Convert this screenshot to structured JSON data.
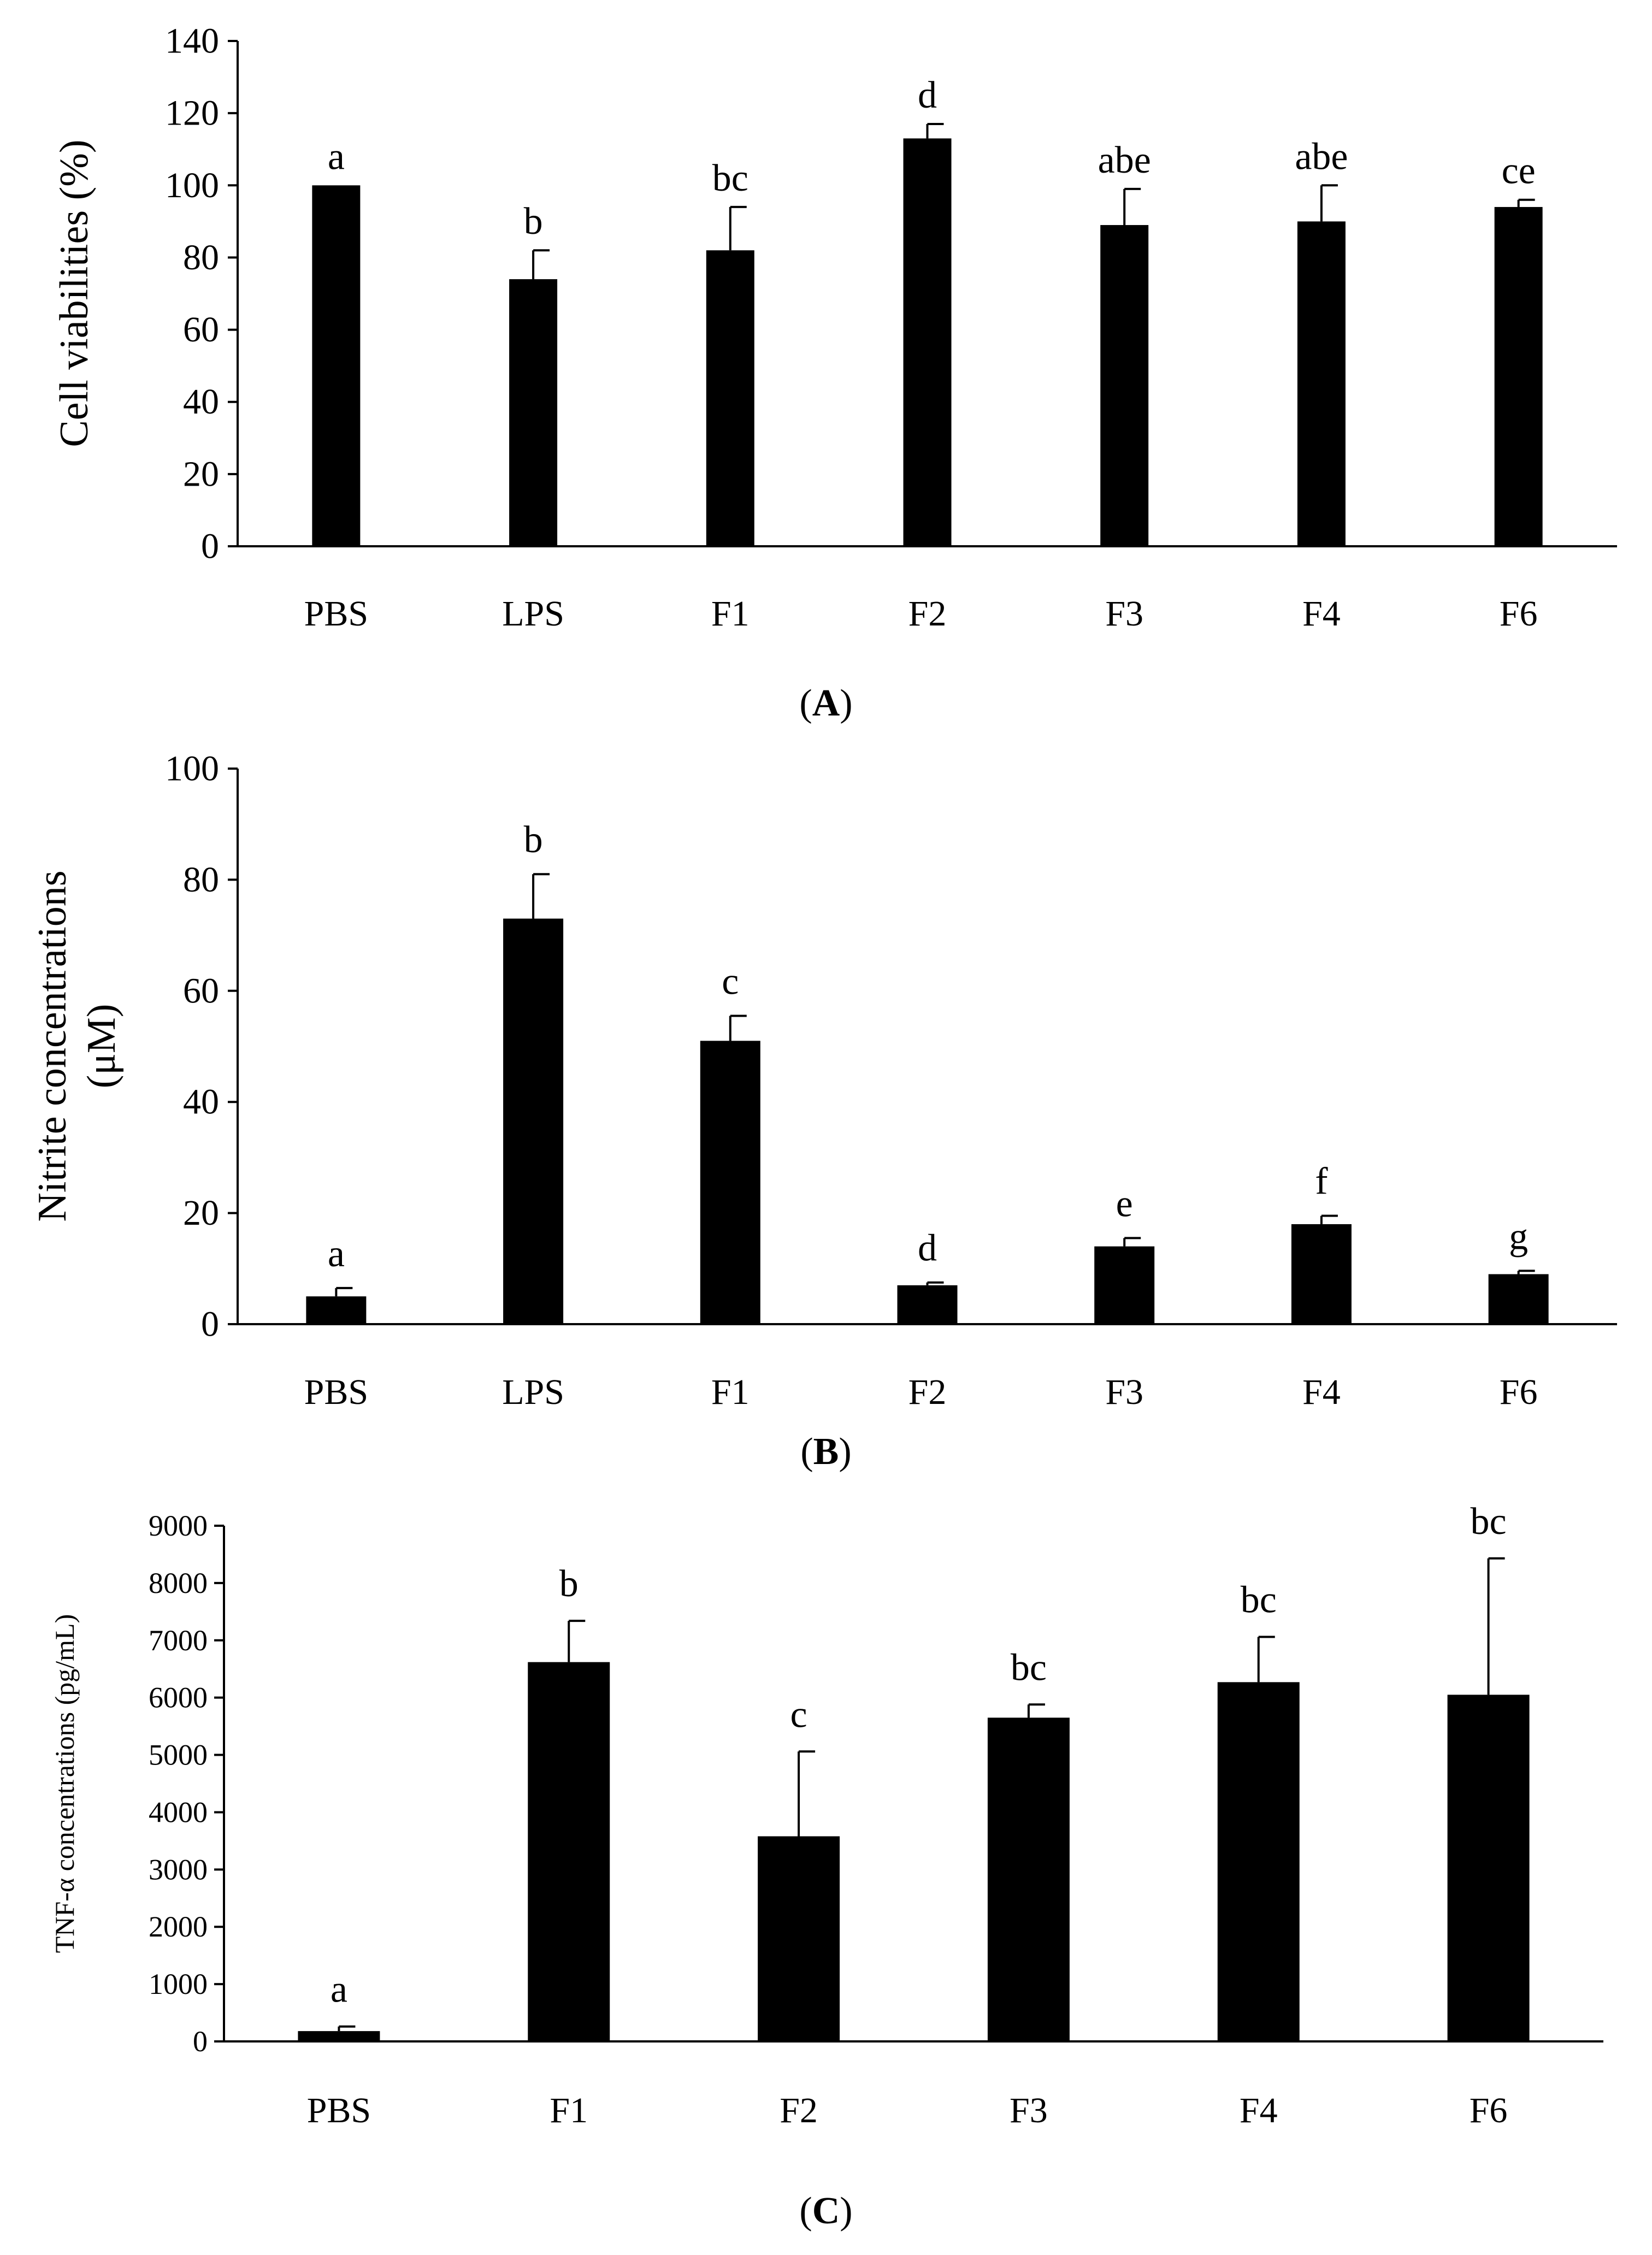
{
  "chart_data": [
    {
      "type": "bar",
      "panel": "A",
      "ylabel": "Cell viabilities (%)",
      "xlabel": "",
      "ylim": [
        0,
        140
      ],
      "yticks": [
        0,
        20,
        40,
        60,
        80,
        100,
        120,
        140
      ],
      "categories": [
        "PBS",
        "LPS",
        "F1",
        "F2",
        "F3",
        "F4",
        "F6"
      ],
      "values": [
        100,
        74,
        82,
        113,
        89,
        90,
        94
      ],
      "errors": [
        0,
        8,
        12,
        4,
        10,
        10,
        2
      ],
      "labels": [
        "a",
        "b",
        "bc",
        "d",
        "abe",
        "abe",
        "ce"
      ],
      "color": "#000000"
    },
    {
      "type": "bar",
      "panel": "B",
      "ylabel": [
        "Nitrite concentrations",
        "(μM)"
      ],
      "xlabel": "",
      "ylim": [
        0,
        100
      ],
      "yticks": [
        0,
        20,
        40,
        60,
        80,
        100
      ],
      "categories": [
        "PBS",
        "LPS",
        "F1",
        "F2",
        "F3",
        "F4",
        "F6"
      ],
      "values": [
        5,
        73,
        51,
        7,
        14,
        18,
        9
      ],
      "errors": [
        1.5,
        8,
        4.5,
        0.5,
        1.5,
        1.5,
        0.6
      ],
      "labels": [
        "a",
        "b",
        "c",
        "d",
        "e",
        "f",
        "g"
      ],
      "color": "#000000"
    },
    {
      "type": "bar",
      "panel": "C",
      "ylabel": "TNF-α concentrations (pg/mL)",
      "xlabel": "",
      "ylim": [
        0,
        9000
      ],
      "yticks": [
        0,
        1000,
        2000,
        3000,
        4000,
        5000,
        6000,
        7000,
        8000,
        9000
      ],
      "categories": [
        "PBS",
        "F1",
        "F2",
        "F3",
        "F4",
        "F6"
      ],
      "values": [
        180,
        6620,
        3580,
        5650,
        6270,
        6050
      ],
      "errors": [
        80,
        720,
        1480,
        230,
        790,
        2380
      ],
      "labels": [
        "a",
        "b",
        "c",
        "bc",
        "bc",
        "bc"
      ],
      "color": "#000000"
    }
  ],
  "panel_labels": {
    "A": {
      "open": "(",
      "letter": "A",
      "close": ")"
    },
    "B": {
      "open": "(",
      "letter": "B",
      "close": ")"
    },
    "C": {
      "open": "(",
      "letter": "C",
      "close": ")"
    }
  }
}
